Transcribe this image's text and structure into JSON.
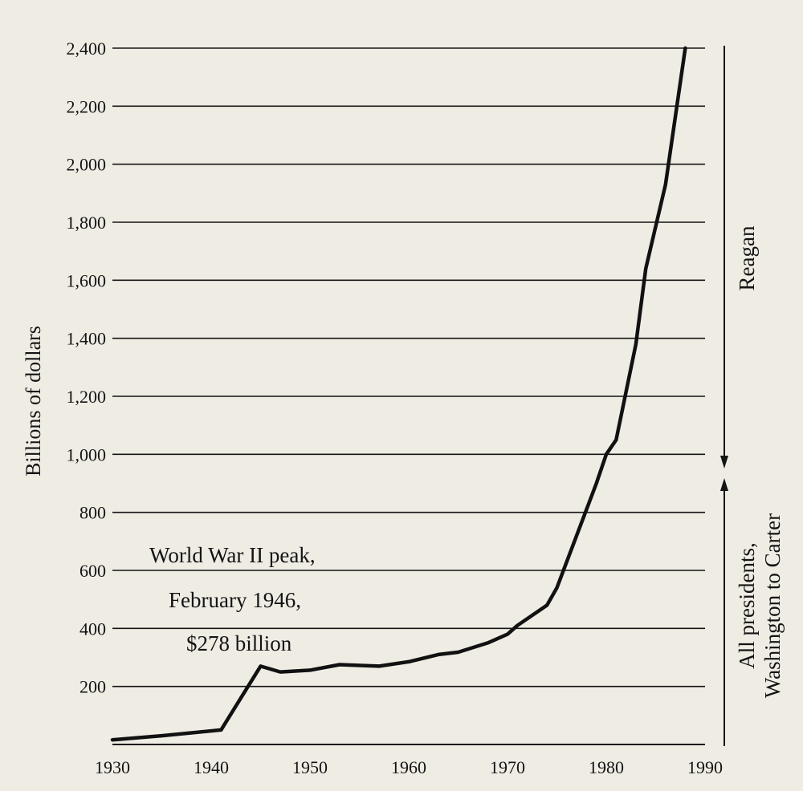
{
  "chart_data": {
    "type": "line",
    "title": "",
    "xlabel": "",
    "ylabel": "Billions of dollars",
    "xlim": [
      1930,
      1990
    ],
    "ylim": [
      0,
      2400
    ],
    "x_ticks": [
      1930,
      1940,
      1950,
      1960,
      1970,
      1980,
      1990
    ],
    "y_ticks": [
      200,
      400,
      600,
      800,
      1000,
      1200,
      1400,
      1600,
      1800,
      2000,
      2200,
      2400
    ],
    "y_tick_labels": [
      "200",
      "400",
      "600",
      "800",
      "1,000",
      "1,200",
      "1,400",
      "1,600",
      "1,800",
      "2,000",
      "2,200",
      "2,400"
    ],
    "x_tick_labels": [
      "1930",
      "1940",
      "1950",
      "1960",
      "1970",
      "1980",
      "1990"
    ],
    "grid": "horizontal",
    "series": [
      {
        "color": "#111111",
        "x": [
          1930,
          1935,
          1941,
          1945,
          1947,
          1950,
          1953,
          1957,
          1960,
          1963,
          1965,
          1968,
          1970,
          1971,
          1974,
          1975,
          1977,
          1979,
          1980,
          1981,
          1983,
          1984,
          1986,
          1988
        ],
        "y": [
          16,
          30,
          50,
          270,
          250,
          256,
          275,
          270,
          285,
          310,
          318,
          350,
          380,
          410,
          480,
          540,
          720,
          900,
          1000,
          1050,
          1380,
          1640,
          1930,
          2400
        ]
      }
    ],
    "annotation": {
      "lines": [
        "World War II peak,",
        "February 1946,",
        "$278 billion"
      ]
    },
    "period_labels": {
      "upper": "Reagan",
      "lower_line1": "All presidents,",
      "lower_line2": "Washington to Carter"
    }
  }
}
